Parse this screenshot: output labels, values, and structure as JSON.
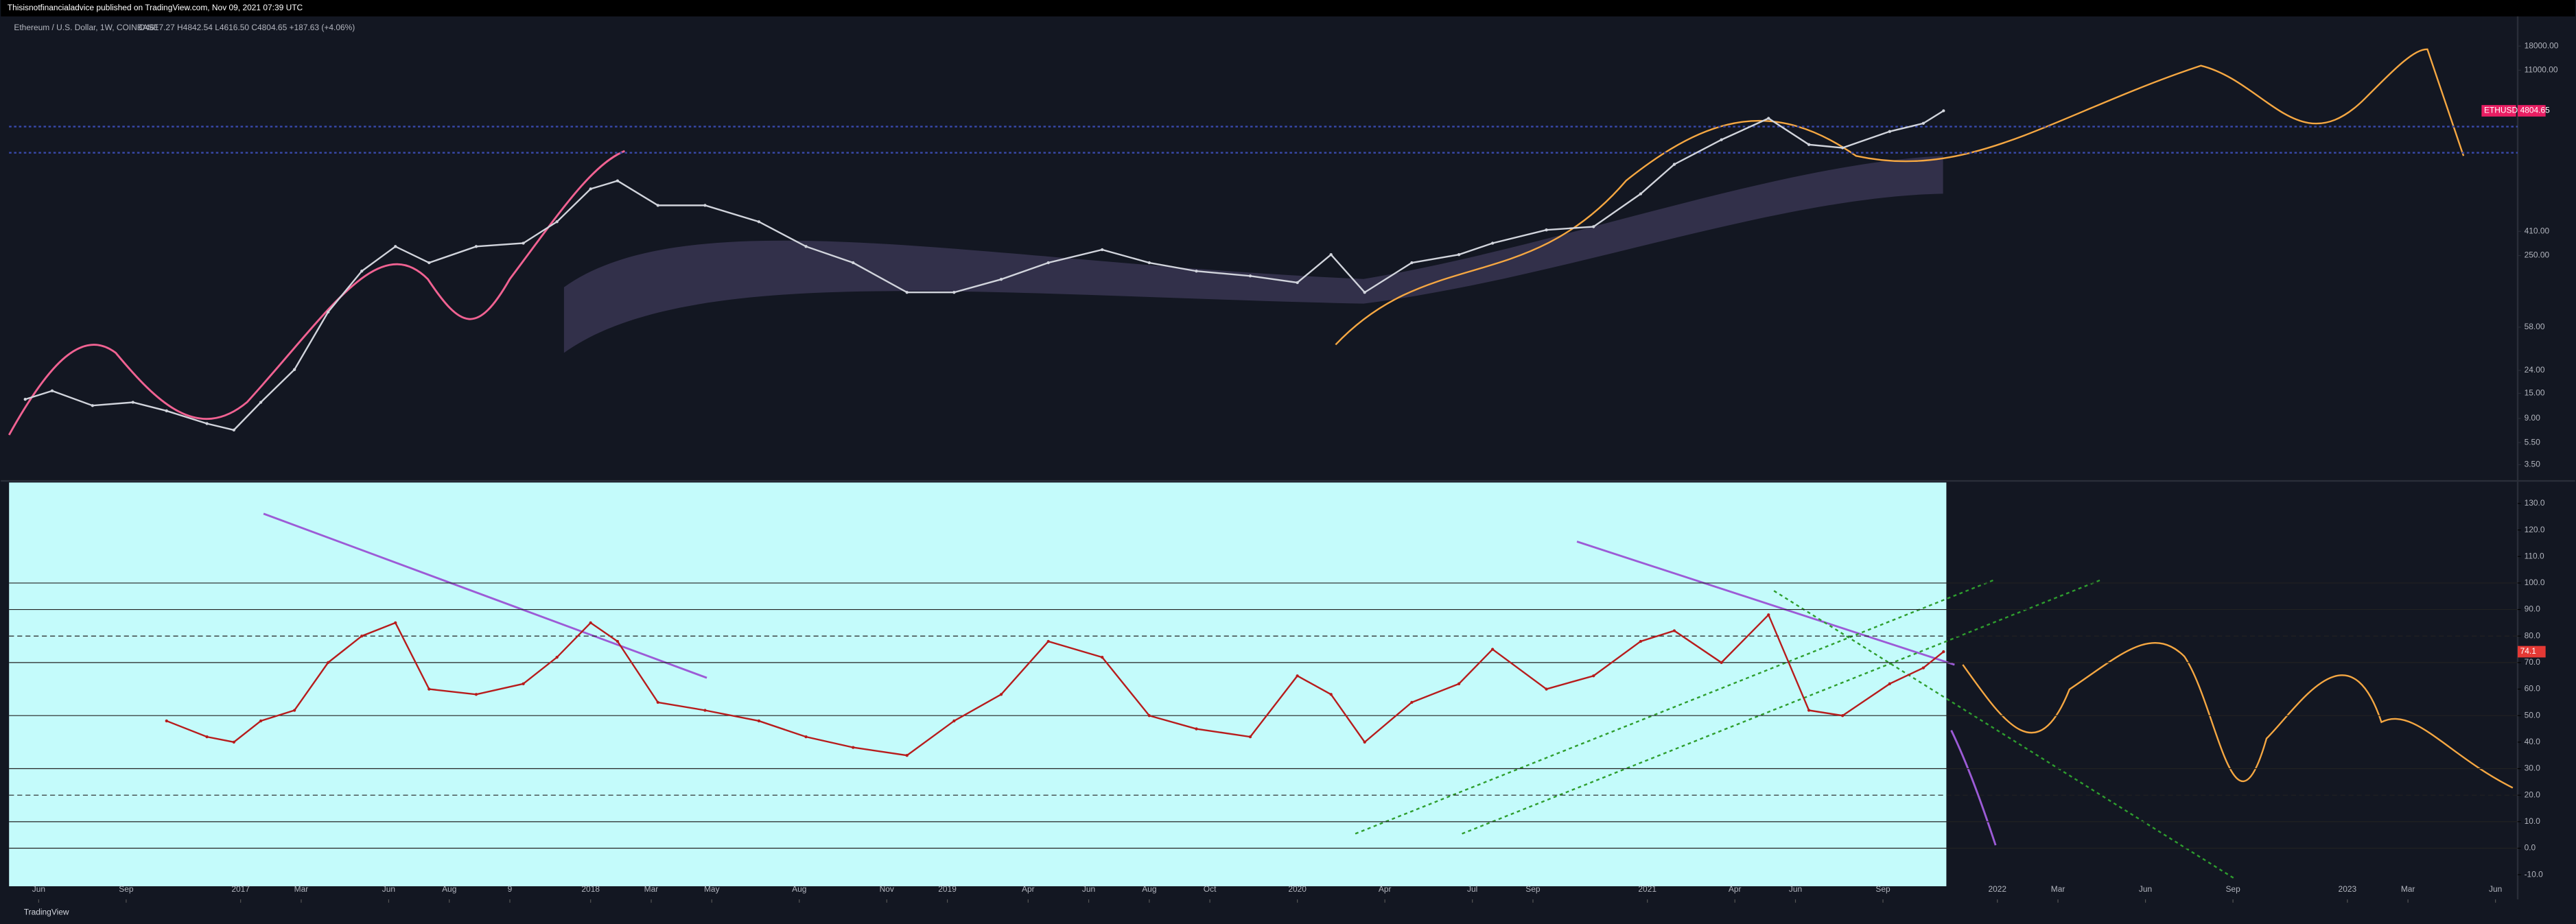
{
  "header": {
    "text": "Thisisnotfinancialadvice published on TradingView.com, Nov 09, 2021 07:39 UTC"
  },
  "footer": {
    "text": "TradingView"
  },
  "chart_data": [
    {
      "type": "line",
      "title": "Ethereum / U.S. Dollar, 1W, COINBASE",
      "subtitle": "O4617.27 H4842.54 L4616.50 C4804.65 +187.63 (+4.06%)",
      "log_scale": true,
      "color": "#d1d4dc",
      "x": [
        -32,
        -28,
        -22,
        -16,
        -11,
        -5,
        -1,
        3,
        8,
        13,
        18,
        23,
        28,
        35,
        42,
        47,
        52,
        56,
        62,
        69,
        77,
        84,
        91,
        99,
        106,
        113,
        120,
        128,
        135,
        142,
        150,
        157,
        162,
        167,
        174,
        181,
        186,
        194,
        201,
        208,
        213,
        220,
        227,
        233,
        238,
        245,
        250,
        253
      ],
      "values": [
        13.3,
        15.8,
        11.7,
        12.5,
        10.5,
        8.1,
        7.1,
        12.5,
        24.4,
        79,
        182,
        301,
        216,
        301,
        322,
        499,
        975,
        1150,
        697,
        697,
        499,
        301,
        216,
        118,
        118,
        154,
        216,
        282,
        216,
        182,
        165,
        144,
        255,
        118,
        216,
        255,
        322,
        422,
        451,
        881,
        1610,
        2660,
        4120,
        2410,
        2255,
        3150,
        3720,
        4804.65
      ],
      "price_tag": {
        "name": "ETHUSD",
        "value": 4804.65
      },
      "hlines": [
        3480,
        2040
      ],
      "xlim": [
        -34.4,
        338.3
      ],
      "xticks": [
        {
          "value": -30,
          "label": "Jun"
        },
        {
          "value": -17,
          "label": "Sep"
        },
        {
          "value": 0,
          "label": "2017"
        },
        {
          "value": 9,
          "label": "Mar"
        },
        {
          "value": 22,
          "label": "Jun"
        },
        {
          "value": 31,
          "label": "Aug"
        },
        {
          "value": 40,
          "label": "9"
        },
        {
          "value": 52,
          "label": "2018"
        },
        {
          "value": 61,
          "label": "Mar"
        },
        {
          "value": 70,
          "label": "May"
        },
        {
          "value": 83,
          "label": "Aug"
        },
        {
          "value": 96,
          "label": "Nov"
        },
        {
          "value": 105,
          "label": "2019"
        },
        {
          "value": 117,
          "label": "Apr"
        },
        {
          "value": 126,
          "label": "Jun"
        },
        {
          "value": 135,
          "label": "Aug"
        },
        {
          "value": 144,
          "label": "Oct"
        },
        {
          "value": 157,
          "label": "2020"
        },
        {
          "value": 170,
          "label": "Apr"
        },
        {
          "value": 183,
          "label": "Jul"
        },
        {
          "value": 192,
          "label": "Sep"
        },
        {
          "value": 209,
          "label": "2021"
        },
        {
          "value": 222,
          "label": "Apr"
        },
        {
          "value": 231,
          "label": "Jun"
        },
        {
          "value": 244,
          "label": "Sep"
        },
        {
          "value": 261,
          "label": "2022"
        },
        {
          "value": 270,
          "label": "Mar"
        },
        {
          "value": 283,
          "label": "Jun"
        },
        {
          "value": 296,
          "label": "Sep"
        },
        {
          "value": 313,
          "label": "2023"
        },
        {
          "value": 322,
          "label": "Mar"
        },
        {
          "value": 335,
          "label": "Jun"
        }
      ],
      "ylim": [
        2.6,
        33000
      ],
      "yticks": [
        {
          "value": 18000,
          "label": "18000.00"
        },
        {
          "value": 11000,
          "label": "11000.00"
        },
        {
          "value": 410,
          "label": "410.00"
        },
        {
          "value": 250,
          "label": "250.00"
        },
        {
          "value": 58,
          "label": "58.00"
        },
        {
          "value": 24,
          "label": "24.00"
        },
        {
          "value": 15,
          "label": "15.00"
        },
        {
          "value": 9,
          "label": "9.00"
        },
        {
          "value": 5.5,
          "label": "5.50"
        },
        {
          "value": 3.5,
          "label": "3.50"
        }
      ]
    },
    {
      "type": "line",
      "color": "#b71c1c",
      "x": [
        -11,
        -5,
        -1,
        3,
        8,
        13,
        18,
        23,
        28,
        35,
        42,
        47,
        52,
        56,
        62,
        69,
        77,
        84,
        91,
        99,
        106,
        113,
        120,
        128,
        135,
        142,
        150,
        157,
        162,
        167,
        174,
        181,
        186,
        194,
        201,
        208,
        213,
        220,
        227,
        233,
        238,
        245,
        250,
        253
      ],
      "values": [
        48,
        42,
        40,
        48,
        52,
        70,
        80,
        85,
        60,
        58,
        62,
        72,
        85,
        78,
        55,
        52,
        48,
        42,
        38,
        35,
        48,
        58,
        78,
        72,
        50,
        45,
        42,
        65,
        58,
        40,
        55,
        62,
        75,
        60,
        65,
        78,
        82,
        70,
        88,
        52,
        50,
        62,
        68,
        74.1
      ],
      "price_tag": {
        "value": 74.1
      },
      "hlines": [
        100,
        90,
        70,
        50,
        30,
        10,
        0
      ],
      "dashed_hlines": [
        80,
        20
      ],
      "xlim": [
        -34.4,
        338.3
      ],
      "ylim": [
        -19.3,
        137.9
      ],
      "yticks": [
        {
          "value": 130,
          "label": "130.0"
        },
        {
          "value": 120,
          "label": "120.0"
        },
        {
          "value": 110,
          "label": "110.0"
        },
        {
          "value": 100,
          "label": "100.0"
        },
        {
          "value": 90,
          "label": "90.0"
        },
        {
          "value": 80,
          "label": "80.0"
        },
        {
          "value": 70,
          "label": "70.0"
        },
        {
          "value": 60,
          "label": "60.0"
        },
        {
          "value": 50,
          "label": "50.0"
        },
        {
          "value": 40,
          "label": "40.0"
        },
        {
          "value": 30,
          "label": "30.0"
        },
        {
          "value": 20,
          "label": "20.0"
        },
        {
          "value": 10,
          "label": "10.0"
        },
        {
          "value": 0,
          "label": "0.0"
        },
        {
          "value": -10,
          "label": "-10.0"
        }
      ]
    }
  ]
}
